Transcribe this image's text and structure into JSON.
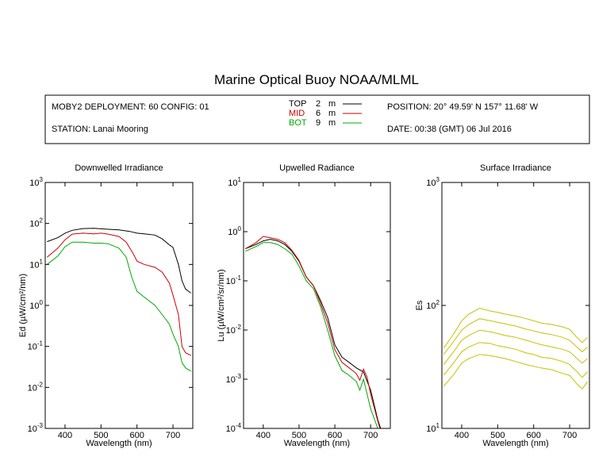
{
  "title": "Marine Optical Buoy NOAA/MLML",
  "info": {
    "deployment": "MOBY2 DEPLOYMENT: 60 CONFIG: 01",
    "station": "STATION: Lanai Mooring",
    "position": "POSITION: 20° 49.59' N 157° 11.68' W",
    "date": "DATE: 00:38 (GMT) 06 Jul 2016"
  },
  "legend": [
    {
      "name": "TOP",
      "depth": "2",
      "unit": "m",
      "color": "#000000"
    },
    {
      "name": "MID",
      "depth": "6",
      "unit": "m",
      "color": "#cc0000"
    },
    {
      "name": "BOT",
      "depth": "9",
      "unit": "m",
      "color": "#00aa00"
    }
  ],
  "chart_data": [
    {
      "type": "line",
      "title": "Downwelled Irradiance",
      "xlabel": "Wavelength (nm)",
      "ylabel": "Ed (µW/cm²/nm)",
      "xlim": [
        345,
        755
      ],
      "ylim": [
        0.001,
        1000
      ],
      "yscale": "log",
      "xticks": [
        400,
        500,
        600,
        700
      ],
      "yticks": [
        {
          "base": "10",
          "exp": "-3"
        },
        {
          "base": "10",
          "exp": "-2"
        },
        {
          "base": "10",
          "exp": "-1"
        },
        {
          "base": "10",
          "exp": "0"
        },
        {
          "base": "10",
          "exp": "1"
        },
        {
          "base": "10",
          "exp": "2"
        },
        {
          "base": "10",
          "exp": "3"
        }
      ],
      "series": [
        {
          "name": "TOP",
          "color": "#000000",
          "x": [
            350,
            380,
            400,
            420,
            450,
            480,
            500,
            520,
            550,
            580,
            600,
            620,
            650,
            670,
            690,
            700,
            715,
            725,
            735,
            750
          ],
          "y": [
            36,
            45,
            58,
            68,
            75,
            76,
            74,
            72,
            70,
            64,
            58,
            56,
            52,
            42,
            30,
            26,
            10,
            4,
            2.5,
            2
          ]
        },
        {
          "name": "MID",
          "color": "#cc0000",
          "x": [
            350,
            380,
            400,
            420,
            450,
            480,
            500,
            520,
            550,
            570,
            590,
            600,
            620,
            650,
            670,
            690,
            700,
            715,
            725,
            735,
            750
          ],
          "y": [
            15,
            25,
            40,
            55,
            58,
            56,
            58,
            55,
            48,
            35,
            18,
            12,
            10,
            8.5,
            6.5,
            3.5,
            1.8,
            0.6,
            0.1,
            0.07,
            0.06
          ]
        },
        {
          "name": "BOT",
          "color": "#00aa00",
          "x": [
            350,
            380,
            400,
            420,
            450,
            480,
            500,
            520,
            550,
            570,
            585,
            600,
            620,
            650,
            670,
            690,
            700,
            715,
            725,
            735,
            750
          ],
          "y": [
            10,
            16,
            27,
            35,
            35,
            33,
            33,
            32,
            25,
            15,
            5,
            2.2,
            1.6,
            1.0,
            0.6,
            0.35,
            0.2,
            0.1,
            0.04,
            0.03,
            0.025
          ]
        }
      ]
    },
    {
      "type": "line",
      "title": "Upwelled Radiance",
      "xlabel": "Wavelength (nm)",
      "ylabel": "Lu (µW/cm²/sr/nm)",
      "xlim": [
        345,
        755
      ],
      "ylim": [
        0.0001,
        10
      ],
      "yscale": "log",
      "xticks": [
        400,
        500,
        600,
        700
      ],
      "yticks": [
        {
          "base": "10",
          "exp": "-4"
        },
        {
          "base": "10",
          "exp": "-3"
        },
        {
          "base": "10",
          "exp": "-2"
        },
        {
          "base": "10",
          "exp": "-1"
        },
        {
          "base": "10",
          "exp": "0"
        },
        {
          "base": "10",
          "exp": "1"
        }
      ],
      "series": [
        {
          "name": "TOP",
          "color": "#000000",
          "x": [
            350,
            380,
            400,
            420,
            440,
            460,
            480,
            500,
            520,
            540,
            560,
            580,
            600,
            620,
            640,
            660,
            680,
            700,
            720,
            730
          ],
          "y": [
            0.45,
            0.55,
            0.65,
            0.7,
            0.65,
            0.55,
            0.4,
            0.25,
            0.12,
            0.08,
            0.04,
            0.018,
            0.005,
            0.0028,
            0.0022,
            0.0017,
            0.0014,
            0.0006,
            0.00015,
            9e-05
          ]
        },
        {
          "name": "MID",
          "color": "#cc0000",
          "x": [
            350,
            380,
            400,
            420,
            440,
            460,
            480,
            500,
            520,
            540,
            560,
            580,
            600,
            620,
            640,
            660,
            670,
            680,
            690,
            700,
            720,
            730
          ],
          "y": [
            0.45,
            0.6,
            0.8,
            0.75,
            0.7,
            0.6,
            0.42,
            0.26,
            0.12,
            0.08,
            0.035,
            0.014,
            0.004,
            0.0022,
            0.0017,
            0.0013,
            0.00095,
            0.0016,
            0.0011,
            0.0005,
            0.00014,
            8e-05
          ]
        },
        {
          "name": "BOT",
          "color": "#00aa00",
          "x": [
            350,
            380,
            400,
            420,
            440,
            460,
            480,
            500,
            520,
            540,
            560,
            580,
            600,
            620,
            640,
            660,
            670,
            680,
            690,
            700,
            720,
            730
          ],
          "y": [
            0.4,
            0.5,
            0.6,
            0.6,
            0.55,
            0.45,
            0.35,
            0.2,
            0.1,
            0.07,
            0.03,
            0.01,
            0.003,
            0.0015,
            0.0012,
            0.0009,
            0.0006,
            0.001,
            0.0005,
            0.00025,
            0.0001,
            8e-05
          ]
        }
      ]
    },
    {
      "type": "line",
      "title": "Surface Irradiance",
      "xlabel": "Wavelength (nm)",
      "ylabel": "Es",
      "xlim": [
        345,
        755
      ],
      "ylim": [
        10,
        1000
      ],
      "yscale": "log",
      "xticks": [
        400,
        500,
        600,
        700
      ],
      "yticks": [
        {
          "base": "10",
          "exp": "1"
        },
        {
          "base": "10",
          "exp": "2"
        },
        {
          "base": "10",
          "exp": "3"
        }
      ],
      "series": [
        {
          "color": "#c8c000",
          "x": [
            350,
            380,
            400,
            420,
            450,
            480,
            500,
            520,
            550,
            580,
            600,
            620,
            650,
            680,
            700,
            720,
            735,
            750
          ],
          "y": [
            45,
            60,
            75,
            85,
            95,
            90,
            88,
            85,
            82,
            78,
            75,
            72,
            70,
            67,
            64,
            55,
            50,
            55
          ]
        },
        {
          "color": "#c8c000",
          "x": [
            350,
            380,
            400,
            420,
            450,
            480,
            500,
            520,
            550,
            580,
            600,
            620,
            650,
            680,
            700,
            720,
            735,
            750
          ],
          "y": [
            40,
            52,
            63,
            70,
            78,
            75,
            73,
            71,
            68,
            64,
            62,
            60,
            58,
            55,
            52,
            46,
            42,
            46
          ]
        },
        {
          "color": "#c8c000",
          "x": [
            350,
            380,
            400,
            420,
            450,
            480,
            500,
            520,
            550,
            580,
            600,
            620,
            650,
            680,
            700,
            720,
            735,
            750
          ],
          "y": [
            33,
            43,
            52,
            57,
            63,
            61,
            59,
            57,
            55,
            52,
            50,
            48,
            46,
            44,
            42,
            37,
            34,
            37
          ]
        },
        {
          "color": "#c8c000",
          "x": [
            350,
            380,
            400,
            420,
            450,
            480,
            500,
            520,
            550,
            580,
            600,
            620,
            650,
            680,
            700,
            720,
            735,
            750
          ],
          "y": [
            27,
            35,
            42,
            46,
            50,
            49,
            47,
            46,
            44,
            41,
            40,
            38,
            37,
            35,
            33,
            29,
            26,
            29
          ]
        },
        {
          "color": "#c8c000",
          "x": [
            350,
            380,
            400,
            420,
            450,
            480,
            500,
            520,
            550,
            580,
            600,
            620,
            650,
            680,
            700,
            720,
            735,
            750
          ],
          "y": [
            22,
            28,
            34,
            37,
            40,
            39,
            38,
            37,
            35,
            33,
            32,
            31,
            30,
            28,
            27,
            23,
            21,
            24
          ]
        }
      ]
    }
  ]
}
